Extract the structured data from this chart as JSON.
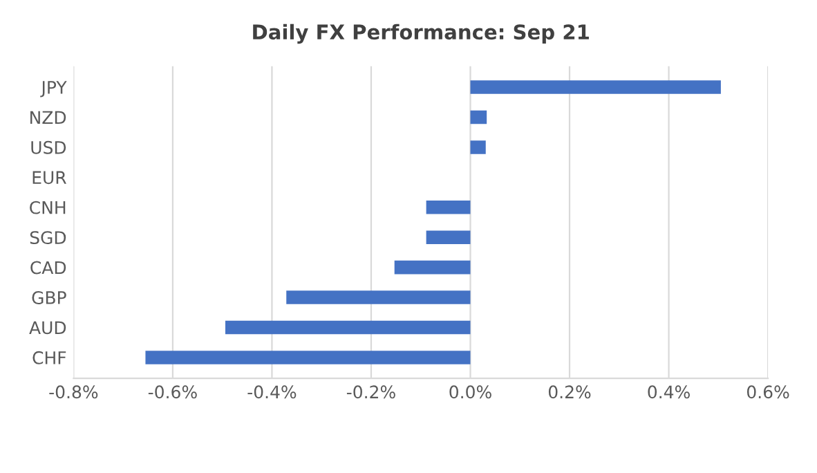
{
  "chart_data": {
    "type": "bar",
    "orientation": "horizontal",
    "title": "Daily FX Performance: Sep 21",
    "categories": [
      "JPY",
      "NZD",
      "USD",
      "EUR",
      "CNH",
      "SGD",
      "CAD",
      "GBP",
      "AUD",
      "CHF"
    ],
    "series": [
      {
        "color": "#4472c4",
        "values": [
          0.505,
          0.033,
          0.031,
          0,
          -0.089,
          -0.089,
          -0.153,
          -0.371,
          -0.494,
          -0.655
        ]
      }
    ],
    "xlim": [
      -0.8,
      0.6
    ],
    "xticks": [
      {
        "value": -0.8,
        "label": "-0.8%"
      },
      {
        "value": -0.6,
        "label": "-0.6%"
      },
      {
        "value": -0.4,
        "label": "-0.4%"
      },
      {
        "value": -0.2,
        "label": "-0.2%"
      },
      {
        "value": 0,
        "label": "0.0%"
      },
      {
        "value": 0.2,
        "label": "0.2%"
      },
      {
        "value": 0.4,
        "label": "0.4%"
      },
      {
        "value": 0.6,
        "label": "0.6%"
      }
    ],
    "grid": "x"
  }
}
